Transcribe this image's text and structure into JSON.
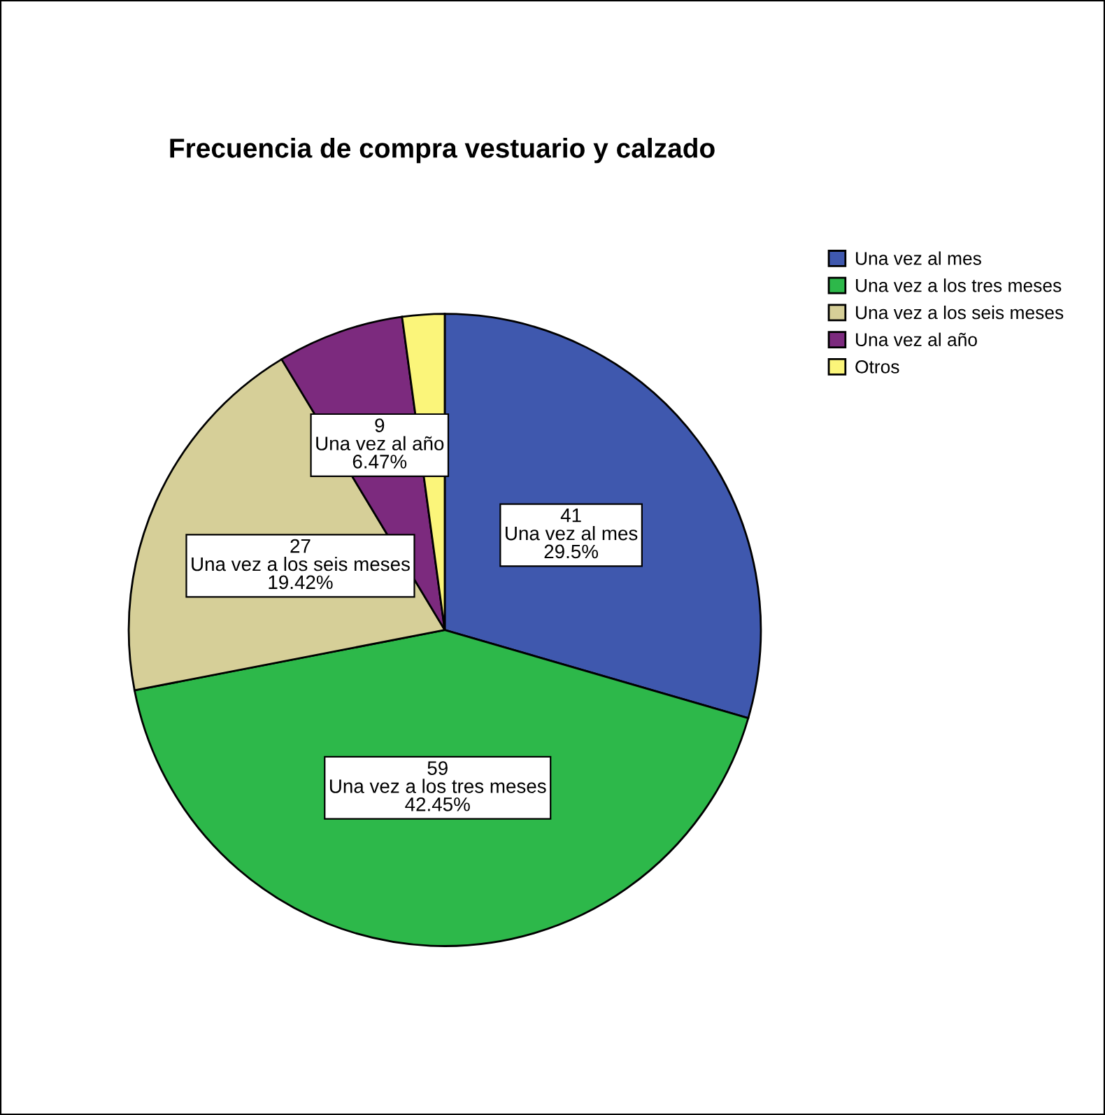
{
  "chart_data": {
    "type": "pie",
    "title": "Frecuencia de compra vestuario y calzado",
    "categories": [
      "Una vez al mes",
      "Una vez a los tres meses",
      "Una vez a los seis meses",
      "Una vez al año",
      "Otros"
    ],
    "values": [
      41,
      59,
      27,
      9,
      3
    ],
    "colors": [
      "#3f58ae",
      "#2db84a",
      "#d6cf98",
      "#7c2a7e",
      "#fbf57a"
    ],
    "value_labels": [
      "41\nUna vez al mes\n29.5%",
      "59\nUna vez a los tres meses\n42.45%",
      "27\nUna vez a los seis meses\n19.42%",
      "9\nUna vez al año\n6.47%",
      null
    ],
    "legend": "top right"
  }
}
